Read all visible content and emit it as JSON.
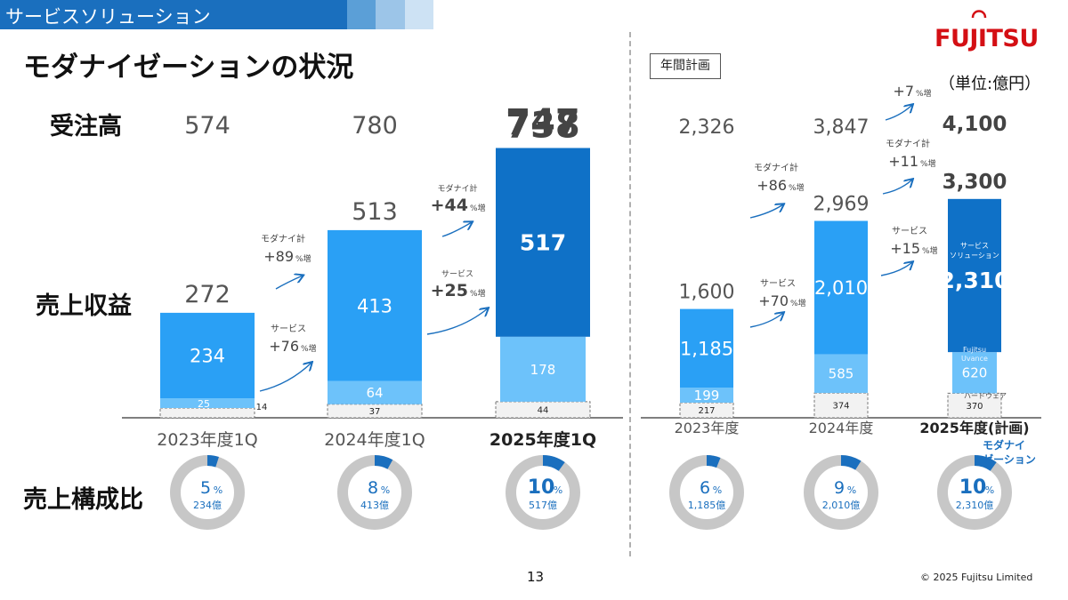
{
  "header": {
    "section": "サービスソリューション",
    "title": "モダナイゼーションの状況"
  },
  "logo": {
    "text": "FUJITSU"
  },
  "unit": "（単位:億円）",
  "plan_label": "年間計画",
  "row_labels": {
    "orders": "受注高",
    "revenue": "売上収益",
    "ratio": "売上構成比"
  },
  "footer": {
    "page": "13",
    "copyright": "© 2025 Fujitsu Limited"
  },
  "colors": {
    "accent": "#1a6fbe",
    "bar_main": "#2aa0f5",
    "bar_light": "#6dc2fa",
    "bar_dark": "#0f71c7",
    "donut_bg": "#c7c7c7",
    "donut_fg": "#1a6fbe"
  },
  "chart_data": [
    {
      "type": "bar",
      "stacked": true,
      "categories": [
        "2023年度1Q",
        "2024年度1Q",
        "2025年度1Q"
      ],
      "orders": [
        "574",
        "780",
        "747"
      ],
      "totals": [
        "272",
        "513",
        "738"
      ],
      "series": [
        {
          "values": [
            14,
            37,
            44
          ],
          "labels": [
            "14",
            "37",
            "44"
          ]
        },
        {
          "values": [
            25,
            64,
            178
          ],
          "labels": [
            "25",
            "64",
            "178"
          ]
        },
        {
          "values": [
            234,
            413,
            517
          ],
          "labels": [
            "234",
            "413",
            "517"
          ]
        }
      ],
      "growth": [
        {
          "label": "モダナイ計",
          "value": "+89",
          "suffix": "%増"
        },
        {
          "label": "サービス",
          "value": "+76",
          "suffix": "%増"
        },
        {
          "label": "モダナイ計",
          "value": "+44",
          "suffix": "%増"
        },
        {
          "label": "サービス",
          "value": "+25",
          "suffix": "%増"
        }
      ],
      "ratio": [
        {
          "percent": 5,
          "pct_label": "5",
          "amount": "234億"
        },
        {
          "percent": 8,
          "pct_label": "8",
          "amount": "413億"
        },
        {
          "percent": 10,
          "pct_label": "10",
          "amount": "517億"
        }
      ],
      "ratio_unit": "%"
    },
    {
      "type": "bar",
      "stacked": true,
      "categories": [
        "2023年度",
        "2024年度",
        "2025年度(計画)"
      ],
      "orders": [
        "2,326",
        "3,847",
        "4,100"
      ],
      "totals": [
        "1,600",
        "2,969",
        "3,300"
      ],
      "series": [
        {
          "name": "ハードウェア",
          "values": [
            217,
            374,
            370
          ],
          "labels": [
            "217",
            "374",
            "370"
          ]
        },
        {
          "name": "Fujitsu Uvance",
          "values": [
            199,
            585,
            620
          ],
          "labels": [
            "199",
            "585",
            "620"
          ]
        },
        {
          "name": "サービスソリューション",
          "values": [
            1185,
            2010,
            2310
          ],
          "labels": [
            "1,185",
            "2,010",
            "2,310"
          ]
        }
      ],
      "growth": [
        {
          "label": "モダナイ計",
          "value": "+86",
          "suffix": "%増"
        },
        {
          "label": "サービス",
          "value": "+70",
          "suffix": "%増"
        },
        {
          "label": "",
          "value": "+7",
          "suffix": "%増"
        },
        {
          "label": "モダナイ計",
          "value": "+11",
          "suffix": "%増"
        },
        {
          "label": "サービス",
          "value": "+15",
          "suffix": "%増"
        }
      ],
      "ratio": [
        {
          "percent": 6,
          "pct_label": "6",
          "amount": "1,185億"
        },
        {
          "percent": 9,
          "pct_label": "9",
          "amount": "2,010億"
        },
        {
          "percent": 10,
          "pct_label": "10",
          "amount": "2,310億"
        }
      ],
      "ratio_unit": "%",
      "donut_tag": "モダナイゼーション"
    }
  ]
}
